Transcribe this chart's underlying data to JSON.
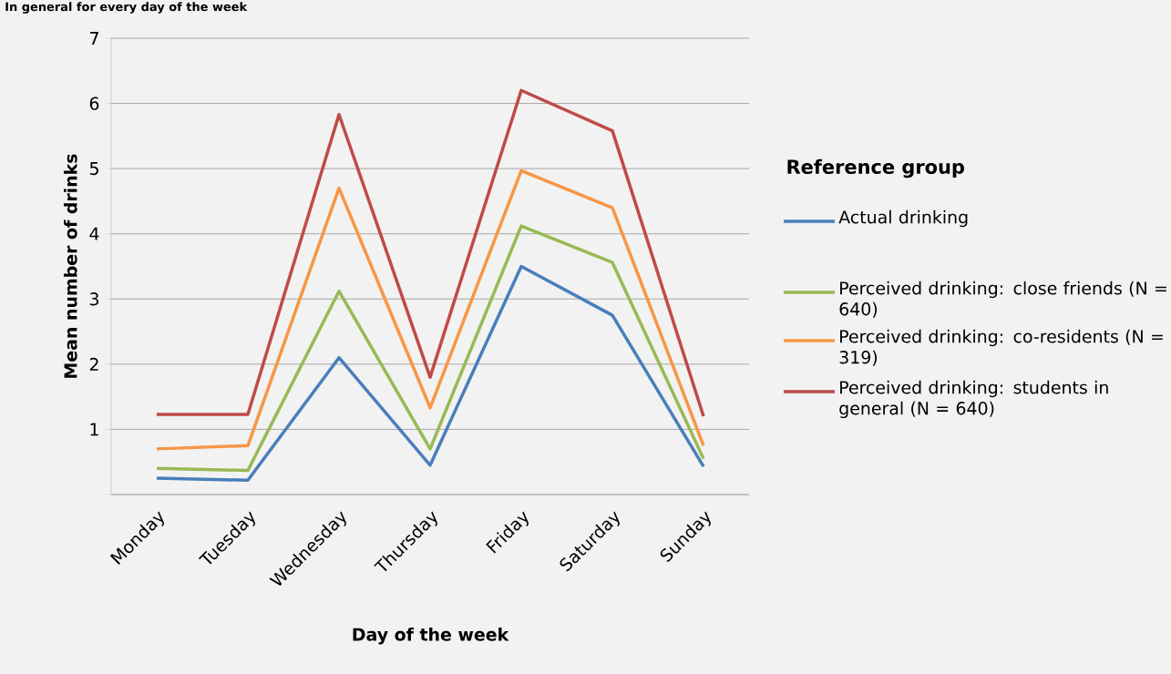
{
  "chart_data": {
    "type": "line",
    "title": "In general for every day of the week",
    "xlabel": "Day of the week",
    "ylabel": "Mean number of drinks",
    "legend_title": "Reference group",
    "categories": [
      "Monday",
      "Tuesday",
      "Wednesday",
      "Thursday",
      "Friday",
      "Saturday",
      "Sunday"
    ],
    "ylim": [
      0,
      7
    ],
    "yticks": [
      {
        "value": 0,
        "label": null
      },
      1,
      2,
      3,
      4,
      5,
      6,
      7
    ],
    "grid": "y",
    "legend": "right",
    "marker": "none",
    "line_style": "solid",
    "series": [
      {
        "name": "Actual drinking",
        "color": "#4a7ebb",
        "values": [
          0.25,
          0.22,
          2.1,
          0.45,
          3.5,
          2.75,
          0.43
        ]
      },
      {
        "name": "Perceived drinking: close friends (N = 640)",
        "color": "#98b954",
        "values": [
          0.4,
          0.37,
          3.12,
          0.7,
          4.12,
          3.56,
          0.55
        ]
      },
      {
        "name": "Perceived drinking: co-residents (N = 319)",
        "color": "#f79646",
        "values": [
          0.7,
          0.75,
          4.7,
          1.33,
          4.97,
          4.4,
          0.75
        ]
      },
      {
        "name": "Perceived drinking: students in general (N = 640)",
        "color": "#be4b48",
        "values": [
          1.23,
          1.23,
          5.83,
          1.8,
          6.2,
          5.58,
          1.2
        ]
      }
    ]
  }
}
